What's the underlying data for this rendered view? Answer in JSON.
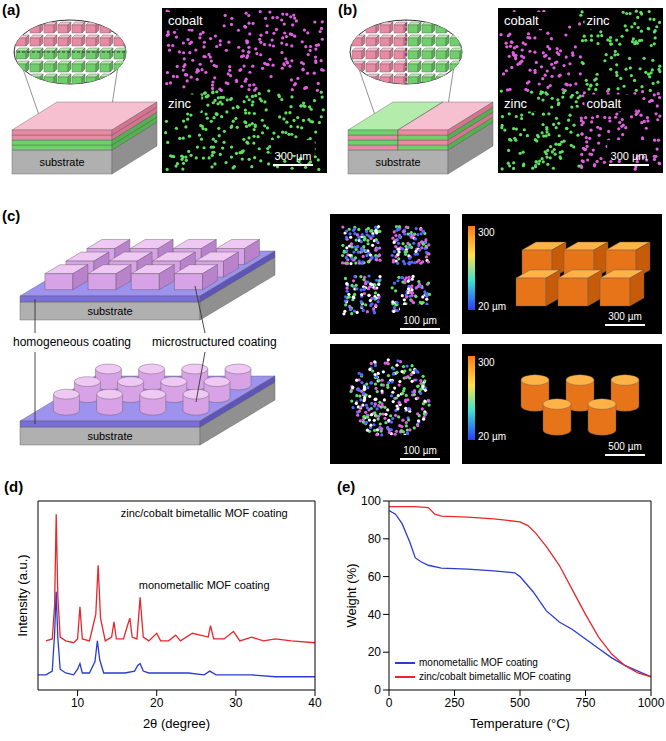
{
  "panels": {
    "a": {
      "letter": "(a)",
      "substrate": "substrate",
      "map_labels": [
        "cobalt",
        "zinc"
      ],
      "scale_bar": "300 µm"
    },
    "b": {
      "letter": "(b)",
      "substrate": "substrate",
      "map_labels": [
        "cobalt",
        "zinc",
        "zinc",
        "cobalt"
      ],
      "scale_bar": "300 µm"
    },
    "c": {
      "letter": "(c)",
      "substrate": "substrate",
      "labels": [
        "homogeneous coating",
        "microstructured coating"
      ],
      "maps": [
        {
          "shape": "square",
          "scale_bar": "100 µm"
        },
        {
          "shape": "circle",
          "scale_bar": "100 µm"
        }
      ],
      "height_maps": [
        {
          "shape": "square",
          "colorbar": [
            "300",
            "20 µm"
          ],
          "scale_bar": "300 µm"
        },
        {
          "shape": "circle",
          "colorbar": [
            "300",
            "20 µm"
          ],
          "scale_bar": "500 µm"
        }
      ]
    }
  },
  "chart_data": [
    {
      "panel": "(d)",
      "type": "line",
      "x_label": "2θ (degree)",
      "y_label": "Intensity (a.u.)",
      "xlim": [
        5,
        40
      ],
      "xticks": [
        10,
        20,
        30,
        40
      ],
      "ylim": [
        0,
        100
      ],
      "tick_labels": "x",
      "series": [
        {
          "name": "zinc/cobalt bimetallic MOF coating",
          "color": "#e8262b",
          "x": [
            6,
            6.8,
            7.1,
            7.3,
            7.5,
            7.8,
            8.5,
            9.5,
            10.0,
            10.3,
            10.6,
            11.5,
            12.3,
            12.6,
            12.9,
            13.5,
            14.3,
            14.6,
            14.9,
            15.8,
            16.3,
            16.6,
            16.9,
            17.5,
            17.9,
            18.3,
            19,
            20,
            20.5,
            21.5,
            22.4,
            23,
            24.5,
            25.5,
            26.5,
            26.8,
            27.2,
            28.5,
            29.7,
            30.5,
            32,
            33.5,
            35,
            37,
            40
          ],
          "values": [
            26,
            27,
            45,
            93,
            50,
            28,
            26,
            25,
            27,
            44,
            27,
            26,
            40,
            66,
            38,
            26,
            28,
            36,
            27,
            27,
            34,
            38,
            28,
            27,
            49,
            28,
            26,
            30,
            26,
            26,
            29,
            26,
            30,
            29,
            28,
            34,
            27,
            27,
            31,
            26,
            28,
            26,
            27,
            26,
            25
          ]
        },
        {
          "name": "monometallic MOF coating",
          "color": "#2a3ccf",
          "x": [
            5,
            6,
            6.8,
            7.1,
            7.3,
            7.5,
            7.8,
            8.5,
            9.5,
            10.0,
            10.3,
            10.6,
            11.5,
            12.2,
            12.5,
            12.8,
            13.3,
            14.5,
            16,
            17.2,
            17.6,
            17.9,
            18.3,
            19,
            20,
            22,
            24,
            26,
            26.7,
            27.5,
            30,
            32,
            35,
            38,
            40
          ],
          "values": [
            8,
            8,
            10,
            30,
            52,
            28,
            11,
            9,
            8,
            11,
            14,
            9,
            9,
            15,
            26,
            16,
            9,
            9,
            9,
            10,
            13,
            14,
            10,
            9,
            9,
            9,
            9,
            8,
            10,
            8,
            8,
            8,
            7,
            7,
            7
          ]
        }
      ]
    },
    {
      "panel": "(e)",
      "type": "line",
      "x_label": "Temperature (°C)",
      "y_label": "Weight (%)",
      "xlim": [
        0,
        1000
      ],
      "xticks": [
        0,
        250,
        500,
        750,
        1000
      ],
      "ylim": [
        0,
        100
      ],
      "yticks": [
        0,
        20,
        40,
        60,
        80,
        100
      ],
      "legend": "lower left",
      "series": [
        {
          "name": "monometallic MOF coating",
          "color": "#2a3ccf",
          "x": [
            0,
            25,
            50,
            80,
            100,
            120,
            150,
            200,
            300,
            400,
            480,
            500,
            550,
            600,
            650,
            700,
            750,
            800,
            850,
            900,
            950,
            1000
          ],
          "values": [
            95,
            93,
            88,
            78,
            70,
            68,
            66,
            64.5,
            64,
            63,
            62,
            60,
            52,
            42,
            36,
            32,
            27,
            22,
            17,
            13,
            10,
            7
          ]
        },
        {
          "name": "zinc/cobalt bimetallic MOF coating",
          "color": "#e8262b",
          "x": [
            0,
            100,
            150,
            175,
            200,
            300,
            400,
            500,
            530,
            560,
            600,
            650,
            700,
            750,
            800,
            850,
            900,
            950,
            1000
          ],
          "values": [
            97,
            97,
            96.5,
            93,
            92,
            91.5,
            90.5,
            89,
            87,
            83,
            76,
            66,
            53,
            40,
            28,
            19,
            13,
            9,
            7
          ]
        }
      ]
    }
  ]
}
